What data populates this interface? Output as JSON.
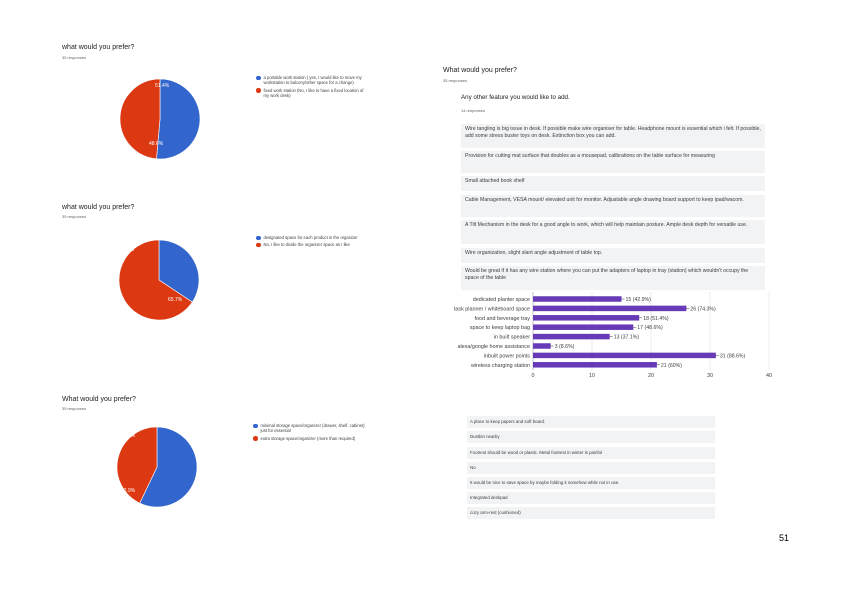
{
  "page_number": "51",
  "pie_questions": [
    {
      "title": "what would you prefer?",
      "responses": "35 responses",
      "legend": [
        {
          "text": "a portable work station ( yes, I would like to move my workstation to balcony/other space for a change)",
          "color": "#3366cc"
        },
        {
          "text": "fixed work station (No, I like to have a fixed location of my work desk)",
          "color": "#dc3912"
        }
      ],
      "labels": [
        "48.6%",
        "51.4%"
      ]
    },
    {
      "title": "what would you prefer?",
      "responses": "35 responses",
      "legend": [
        {
          "text": "designated space for each product in the organizer",
          "color": "#3366cc"
        },
        {
          "text": "No, I like to divide the organizer space as I like",
          "color": "#dc3912"
        }
      ],
      "labels": [
        "65.7%",
        "34.3%"
      ]
    },
    {
      "title": "What would you prefer?",
      "responses": "35 responses",
      "legend": [
        {
          "text": "minimal storage space/organizer (drawer, shelf, cabinet) just for essential",
          "color": "#3366cc"
        },
        {
          "text": "extra storage space/organizer (more than required)",
          "color": "#dc3912"
        }
      ],
      "labels": [
        "42.9%",
        "57.1%"
      ]
    }
  ],
  "right_header": {
    "title": "What would you prefer?",
    "responses": "35 responses"
  },
  "feature_question": {
    "title": "Any other feature you would like to add.",
    "responses": "14 responses",
    "answers": [
      "Wire tangling is big issue in desk. If possible make wire organiser for table. Headphone mount is essential which i felt. If possible, add some stress buster toys on desk. Extinction box you can add.",
      "Provision for cutting mat surface that doubles as a mousepad, calibrations on the table surface for measuring",
      "Small attached book shelf",
      "Cable Management, VESA mount/ elevated unit for monitor. Adjustable angle drawing board support to keep ipad/wacom.",
      "A Tilt Mechanism in the desk for a good angle to work, which will help maintain posture. Ample desk depth for versatile use.",
      "Wire organization, slight slant angle adjustment of table top.",
      "Would be great if it has any wire station where you can put the adapters of laptop in tray (station) which wouldn't occupy the space of the table"
    ]
  },
  "bottom_answers": [
    "A place to keep papers and soft board.",
    "Dustbin nearby",
    "Footrest should be wood or plastic. Metal footrest in winter is painful",
    "No",
    "It would be nice to save space by maybe folding it somehow while not in use.",
    "Integrated deskpad",
    "cozy arm-rest (cushioned)"
  ],
  "colors": {
    "blue": "#3366cc",
    "red": "#dc3912",
    "bar": "#673ab7",
    "box": "#f1f3f4"
  },
  "chart_data": [
    {
      "type": "pie",
      "slices": [
        {
          "name": "a portable work station",
          "value": 51.4
        },
        {
          "name": "fixed work station",
          "value": 48.6
        }
      ]
    },
    {
      "type": "pie",
      "slices": [
        {
          "name": "designated space for each product in the organizer",
          "value": 34.3
        },
        {
          "name": "No, I like to divide the organizer space as I like",
          "value": 65.7
        }
      ]
    },
    {
      "type": "pie",
      "slices": [
        {
          "name": "minimal storage space/organizer",
          "value": 57.1
        },
        {
          "name": "extra storage space/organizer",
          "value": 42.9
        }
      ]
    },
    {
      "type": "bar",
      "orientation": "horizontal",
      "categories": [
        "dedicated planter space",
        "task planner / whiteboard space",
        "food and beverage tray",
        "space to keep laptop bag",
        "in built speaker",
        "alexa/google home assistance",
        "inbuilt power points",
        "wireless charging station"
      ],
      "values": [
        15,
        26,
        18,
        17,
        13,
        3,
        31,
        21
      ],
      "value_labels": [
        "15 (42.9%)",
        "26 (74.3%)",
        "18 (51.4%)",
        "17 (48.6%)",
        "13 (37.1%)",
        "3 (8.6%)",
        "31 (88.6%)",
        "21 (60%)"
      ],
      "xlim": [
        0,
        40
      ],
      "xticks": [
        "0",
        "10",
        "20",
        "30",
        "40"
      ],
      "grid": true
    }
  ]
}
